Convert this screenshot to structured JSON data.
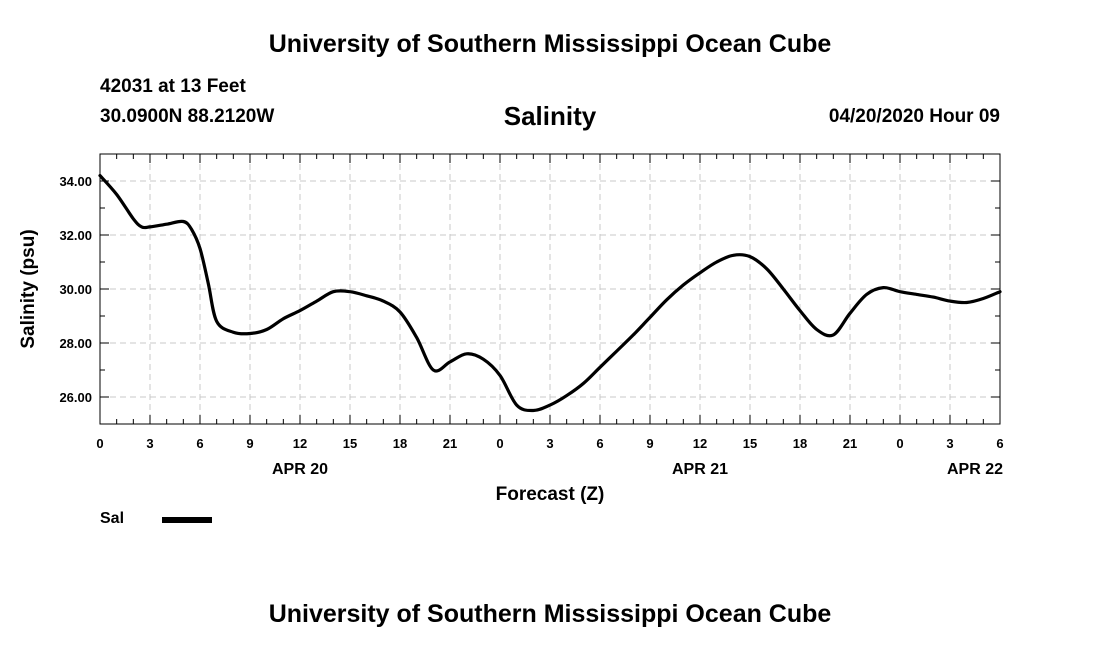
{
  "header": {
    "top_title": "University of Southern Mississippi Ocean Cube",
    "station": "42031 at 13 Feet",
    "coords": "30.0900N 88.2120W",
    "run_time": "04/20/2020 Hour 09",
    "bottom_title": "University of Southern Mississippi Ocean Cube"
  },
  "legend": {
    "label": "Sal",
    "color": "#000000"
  },
  "chart_data": {
    "type": "line",
    "title": "Salinity",
    "xlabel": "Forecast (Z)",
    "ylabel": "Salinity (psu)",
    "ylim": [
      25,
      35
    ],
    "xlim": [
      0,
      54
    ],
    "yticks": [
      "26.00",
      "28.00",
      "30.00",
      "32.00",
      "34.00"
    ],
    "xticks": [
      "0",
      "3",
      "6",
      "9",
      "12",
      "15",
      "18",
      "21",
      "0",
      "3",
      "6",
      "9",
      "12",
      "15",
      "18",
      "21",
      "0",
      "3",
      "6"
    ],
    "date_labels": [
      {
        "label": "APR 20",
        "at_hour": 12
      },
      {
        "label": "APR 21",
        "at_hour": 36
      },
      {
        "label": "APR 22",
        "at_hour": 52.5
      }
    ],
    "grid": true,
    "series": [
      {
        "name": "Sal",
        "color": "#000000",
        "x": [
          0,
          1,
          2,
          2.5,
          3,
          4,
          5,
          5.5,
          6,
          6.5,
          7,
          8,
          9,
          10,
          11,
          12,
          13,
          14,
          15,
          16,
          17,
          18,
          19,
          20,
          21,
          22,
          23,
          24,
          25,
          26,
          27,
          28,
          29,
          30,
          31,
          32,
          33,
          34,
          35,
          36,
          37,
          38,
          39,
          40,
          41,
          42,
          43,
          44,
          45,
          46,
          47,
          48,
          49,
          50,
          51,
          52,
          53,
          54
        ],
        "values": [
          34.2,
          33.5,
          32.6,
          32.3,
          32.3,
          32.4,
          32.5,
          32.2,
          31.5,
          30.2,
          28.8,
          28.4,
          28.35,
          28.5,
          28.9,
          29.2,
          29.55,
          29.9,
          29.9,
          29.75,
          29.55,
          29.15,
          28.2,
          27.0,
          27.3,
          27.6,
          27.4,
          26.8,
          25.7,
          25.5,
          25.7,
          26.05,
          26.5,
          27.1,
          27.7,
          28.3,
          28.95,
          29.6,
          30.15,
          30.6,
          31.0,
          31.25,
          31.2,
          30.75,
          30.0,
          29.2,
          28.5,
          28.3,
          29.1,
          29.8,
          30.05,
          29.9,
          29.8,
          29.7,
          29.55,
          29.5,
          29.65,
          29.9
        ]
      }
    ]
  }
}
